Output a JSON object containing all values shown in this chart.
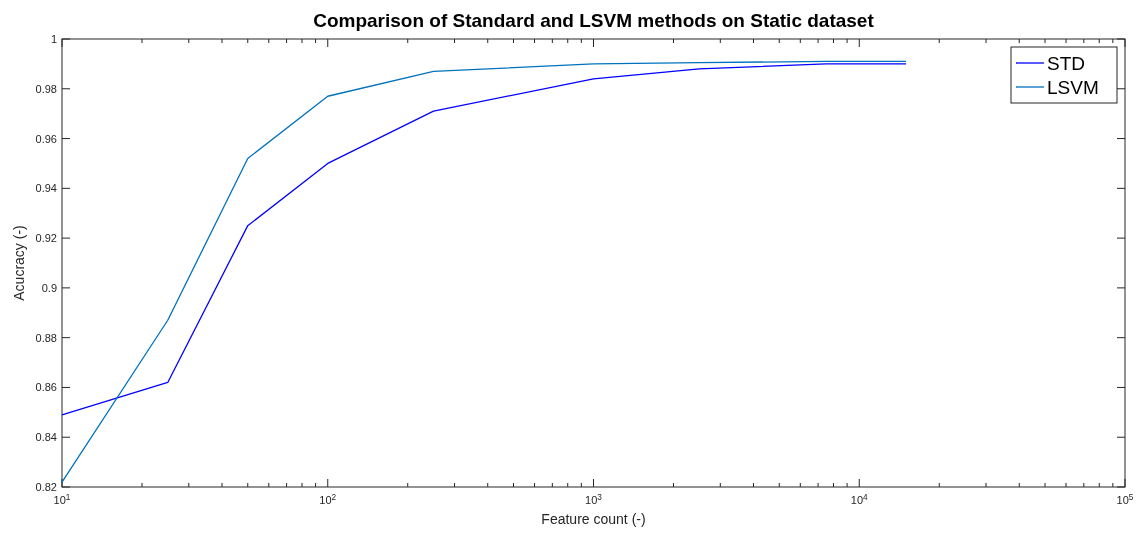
{
  "chart_data": {
    "type": "line",
    "title": "Comparison of Standard and LSVM methods on Static dataset",
    "xlabel": "Feature count (-)",
    "ylabel": "Acucracy (-)",
    "log": "x",
    "xlim": [
      10,
      100000
    ],
    "ylim": [
      0.82,
      1
    ],
    "xticks": [
      {
        "value": 10,
        "label": "10$^{1}$"
      },
      {
        "value": 20,
        "label": null
      },
      {
        "value": 30,
        "label": null
      },
      {
        "value": 40,
        "label": null
      },
      {
        "value": 50,
        "label": null
      },
      {
        "value": 60,
        "label": null
      },
      {
        "value": 70,
        "label": null
      },
      {
        "value": 80,
        "label": null
      },
      {
        "value": 90,
        "label": null
      },
      {
        "value": 100,
        "label": "10$^{2}$"
      },
      {
        "value": 200,
        "label": null
      },
      {
        "value": 300,
        "label": null
      },
      {
        "value": 400,
        "label": null
      },
      {
        "value": 500,
        "label": null
      },
      {
        "value": 600,
        "label": null
      },
      {
        "value": 700,
        "label": null
      },
      {
        "value": 800,
        "label": null
      },
      {
        "value": 900,
        "label": null
      },
      {
        "value": 1000,
        "label": "10$^{3}$"
      },
      {
        "value": 2000,
        "label": null
      },
      {
        "value": 3000,
        "label": null
      },
      {
        "value": 4000,
        "label": null
      },
      {
        "value": 5000,
        "label": null
      },
      {
        "value": 6000,
        "label": null
      },
      {
        "value": 7000,
        "label": null
      },
      {
        "value": 8000,
        "label": null
      },
      {
        "value": 9000,
        "label": null
      },
      {
        "value": 10000,
        "label": "10$^{4}$"
      },
      {
        "value": 20000,
        "label": null
      },
      {
        "value": 30000,
        "label": null
      },
      {
        "value": 40000,
        "label": null
      },
      {
        "value": 50000,
        "label": null
      },
      {
        "value": 60000,
        "label": null
      },
      {
        "value": 70000,
        "label": null
      },
      {
        "value": 80000,
        "label": null
      },
      {
        "value": 90000,
        "label": null
      },
      {
        "value": 100000,
        "label": "10$^{5}$"
      }
    ],
    "yticks": [
      0.82,
      0.84,
      0.86,
      0.88,
      0.9,
      0.92,
      0.94,
      0.96,
      0.98,
      1
    ],
    "x": [
      10,
      25,
      50,
      100,
      250,
      1000,
      2500,
      7500,
      15000
    ],
    "series": [
      {
        "name": "STD",
        "color": "#0000ff",
        "values": [
          0.849,
          0.862,
          0.925,
          0.95,
          0.971,
          0.984,
          0.988,
          0.99,
          0.99
        ]
      },
      {
        "name": "LSVM",
        "color": "#0072bd",
        "values": [
          0.822,
          0.887,
          0.952,
          0.977,
          0.987,
          0.99,
          0.9905,
          0.991,
          0.991
        ]
      }
    ],
    "legend": "top right",
    "grid": false,
    "marker": "none",
    "line_style": "solid"
  }
}
